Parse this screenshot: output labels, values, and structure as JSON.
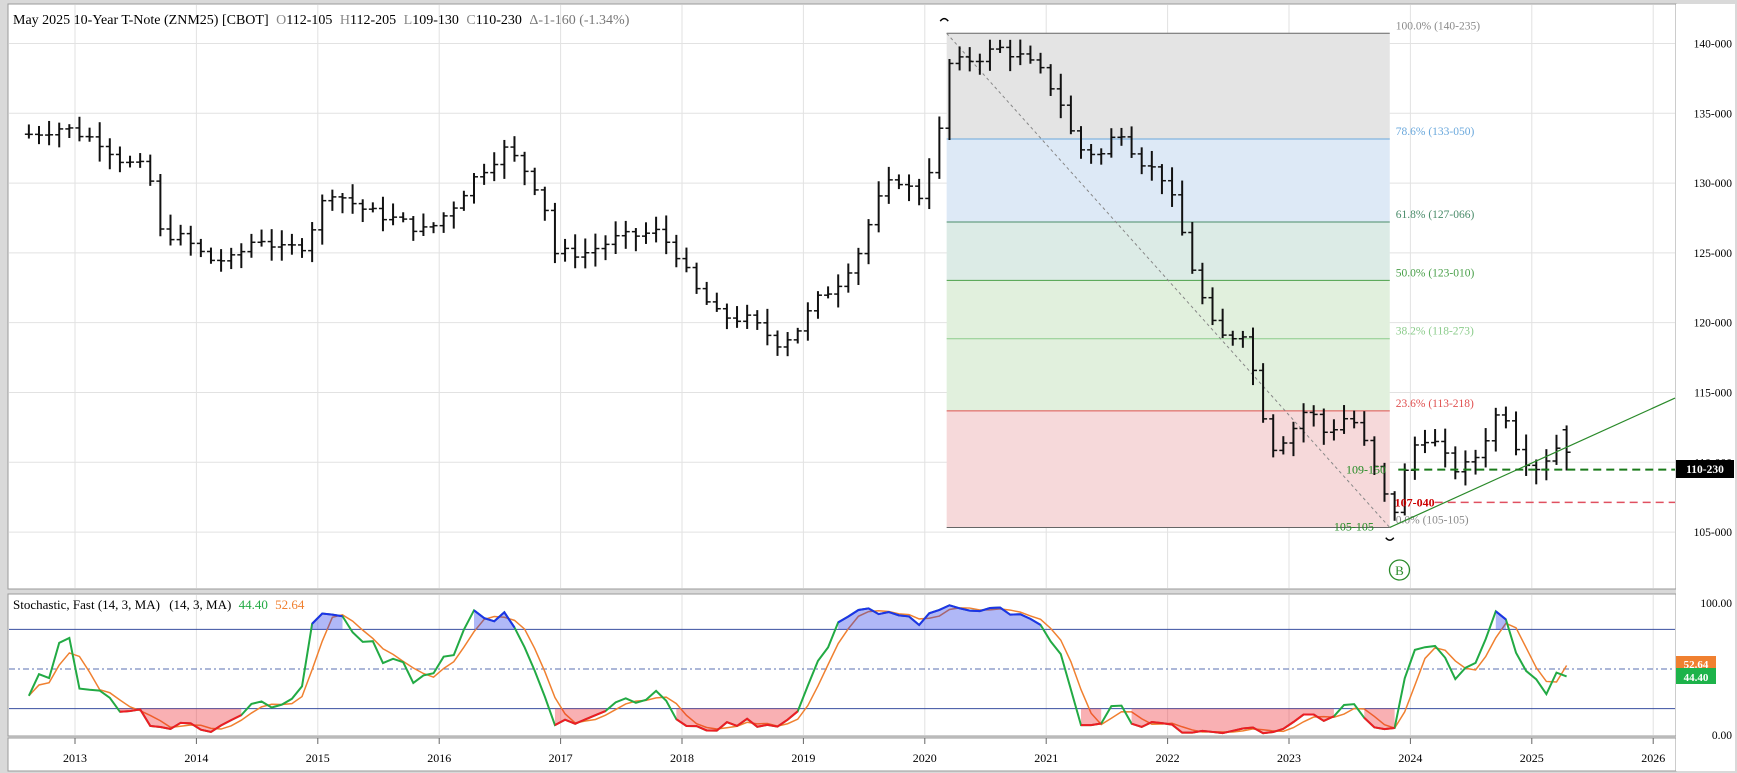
{
  "header": {
    "instrument": "May 2025 10-Year T-Note (ZNM25) [CBOT]",
    "open_label": "O",
    "open": "112-105",
    "high_label": "H",
    "high": "112-205",
    "low_label": "L",
    "low": "109-130",
    "close_label": "C",
    "close": "110-230",
    "change": "Δ-1-160 (-1.34%)"
  },
  "colors": {
    "bar": "#111111",
    "grid": "#e2e2e2",
    "fib_grey": "#e4e4e4",
    "fib_blue": "#dde9f6",
    "fib_teal": "#dcebe6",
    "fib_green": "#e1f0dd",
    "fib_red": "#f6d9da",
    "stoch_k": "#22aa44",
    "stoch_d": "#f08030",
    "overbought_fill": "#1d33e8",
    "oversold_fill": "#ee1c24"
  },
  "chart_data": [
    {
      "type": "ohlc",
      "title": "May 2025 10-Year T-Note (ZNM25) [CBOT]",
      "x_ticks": [
        "2013",
        "2014",
        "2015",
        "2016",
        "2017",
        "2018",
        "2019",
        "2020",
        "2021",
        "2022",
        "2023",
        "2024",
        "2025",
        "2026"
      ],
      "y_ticks": [
        "105-000",
        "110-000",
        "115-000",
        "120-000",
        "125-000",
        "130-000",
        "135-000",
        "140-000"
      ],
      "y_range": [
        103,
        143
      ],
      "last_price_label": "110-230",
      "last_price": 110.72,
      "fib_levels": [
        {
          "label": "100.0% (140-235)",
          "value": 140.73,
          "color": "#8a8a8a"
        },
        {
          "label": "78.6% (133-050)",
          "value": 133.16,
          "color": "#6aa8dc"
        },
        {
          "label": "61.8% (127-066)",
          "value": 127.21,
          "color": "#4a8c6a"
        },
        {
          "label": "50.0% (123-010)",
          "value": 123.03,
          "color": "#4aa04a"
        },
        {
          "label": "38.2% (118-273)",
          "value": 118.85,
          "color": "#8ccc8c"
        },
        {
          "label": "23.6% (113-218)",
          "value": 113.68,
          "color": "#e05050"
        },
        {
          "label": "0.0% (105-105)",
          "value": 105.33,
          "color": "#8a8a8a"
        }
      ],
      "annotations": [
        {
          "label": "109-150",
          "value": 109.47,
          "color": "#228b22"
        },
        {
          "label": "107-040",
          "value": 107.13,
          "color": "#cc0000"
        },
        {
          "label": "105-105",
          "value": 105.33,
          "color": "#228b22"
        }
      ],
      "marker": "B",
      "series": [
        {
          "open": [],
          "high": [],
          "low": [],
          "close": []
        }
      ]
    },
    {
      "type": "line",
      "title": "Stochastic, Fast (14, 3, MA)",
      "params": "(14, 3, MA)",
      "y_ticks": [
        "0.00",
        "100.00"
      ],
      "y_range": [
        0,
        100
      ],
      "overbought": 80,
      "oversold": 20,
      "midline": 50,
      "k_last": "44.40",
      "d_last": "52.64",
      "series": [
        {
          "values": []
        },
        {
          "values": []
        }
      ]
    }
  ]
}
